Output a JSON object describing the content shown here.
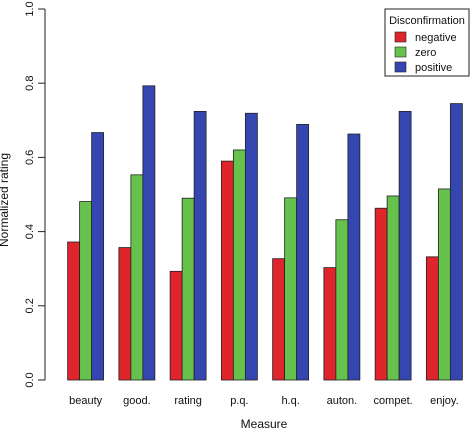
{
  "chart_data": {
    "type": "bar",
    "title": "",
    "xlabel": "Measure",
    "ylabel": "Normalized rating",
    "ylim": [
      0,
      1
    ],
    "yticks": [
      "0.0",
      "0.2",
      "0.4",
      "0.6",
      "0.8",
      "1.0"
    ],
    "grid": false,
    "legend_position": "top-right",
    "legend_title": "Disconfirmation",
    "categories": [
      "beauty",
      "good.",
      "rating",
      "p.q.",
      "h.q.",
      "auton.",
      "compet.",
      "enjoy."
    ],
    "series": [
      {
        "name": "negative",
        "color": "#e0242b",
        "values": [
          0.372,
          0.357,
          0.293,
          0.59,
          0.327,
          0.303,
          0.463,
          0.332
        ]
      },
      {
        "name": "zero",
        "color": "#66c24c",
        "values": [
          0.481,
          0.553,
          0.49,
          0.62,
          0.491,
          0.432,
          0.496,
          0.515
        ]
      },
      {
        "name": "positive",
        "color": "#3646b1",
        "values": [
          0.667,
          0.793,
          0.724,
          0.719,
          0.689,
          0.663,
          0.724,
          0.745
        ]
      }
    ]
  }
}
